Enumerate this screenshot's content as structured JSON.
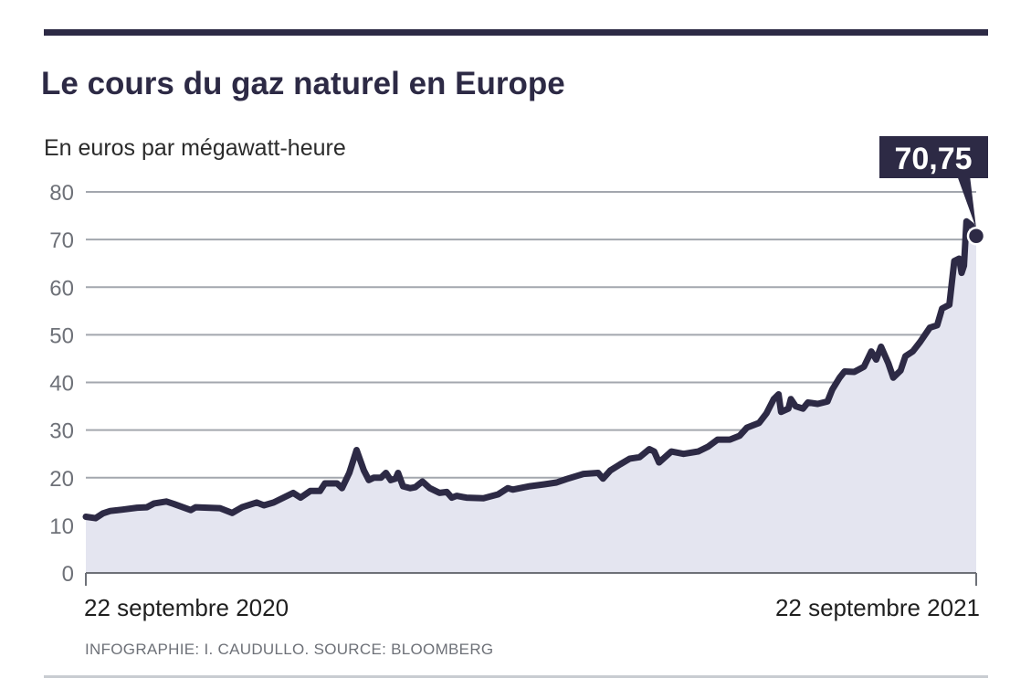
{
  "chart_data": {
    "type": "area",
    "title": "Le cours du gaz naturel en Europe",
    "ylabel": "En euros par mégawatt-heure",
    "xlabel": "",
    "ylim": [
      0,
      80
    ],
    "yticks": [
      "0",
      "10",
      "20",
      "30",
      "40",
      "50",
      "60",
      "70",
      "80"
    ],
    "xlim_days": [
      0,
      365
    ],
    "x_tick_labels": [
      "22 septembre 2020",
      "22 septembre 2021"
    ],
    "grid": true,
    "last_value_label": "70,75",
    "last_value": 70.75,
    "source": "INFOGRAPHIE: I. CAUDULLO. SOURCE: BLOOMBERG",
    "x_unit": "days since 22 septembre 2020",
    "x": [
      0,
      4,
      7,
      10,
      15,
      21,
      25,
      28,
      33,
      36,
      43,
      45,
      55,
      60,
      64,
      70,
      73,
      77,
      85,
      88,
      92,
      96,
      98,
      103,
      105,
      108,
      111,
      114,
      116,
      118,
      121,
      123,
      125,
      127,
      128,
      130,
      133,
      135,
      138,
      141,
      145,
      148,
      150,
      152,
      156,
      163,
      169,
      173,
      175,
      178,
      182,
      188,
      193,
      197,
      204,
      210,
      212,
      215,
      219,
      223,
      227,
      231,
      233,
      235,
      240,
      245,
      251,
      255,
      259,
      264,
      268,
      271,
      276,
      279,
      282,
      284,
      285,
      288,
      289,
      291,
      294,
      296,
      300,
      304,
      306,
      309,
      311,
      315,
      319,
      322,
      324,
      326,
      329,
      331,
      334,
      336,
      339,
      342,
      346,
      349,
      351,
      354,
      356,
      358,
      359,
      360,
      361,
      363,
      365
    ],
    "values": [
      11.8,
      11.5,
      12.5,
      13,
      13.3,
      13.7,
      13.8,
      14.6,
      15,
      14.5,
      13.2,
      13.8,
      13.6,
      12.6,
      13.8,
      14.8,
      14.2,
      14.8,
      16.8,
      15.8,
      17.2,
      17.2,
      18.8,
      18.8,
      17.8,
      21,
      25.8,
      21.5,
      19.5,
      20,
      20,
      21,
      19.5,
      19.8,
      21,
      18.2,
      17.8,
      18,
      19.2,
      17.8,
      16.8,
      17,
      15.8,
      16.2,
      15.8,
      15.7,
      16.5,
      17.8,
      17.5,
      17.8,
      18.2,
      18.6,
      19,
      19.7,
      20.8,
      21,
      19.8,
      21.5,
      22.8,
      24,
      24.3,
      26,
      25.5,
      23.2,
      25.5,
      25,
      25.5,
      26.5,
      28,
      28,
      28.8,
      30.5,
      31.5,
      33.5,
      36.5,
      37.5,
      33.8,
      34.5,
      36.5,
      35,
      34.5,
      35.8,
      35.5,
      36,
      38.5,
      41,
      42.3,
      42.2,
      43.3,
      46.5,
      44.8,
      47.5,
      44,
      41,
      42.5,
      45.5,
      46.5,
      48.5,
      51.5,
      52,
      55.5,
      56.3,
      65.5,
      66,
      63,
      64.5,
      73.8,
      73,
      70.75
    ]
  },
  "colors": {
    "line": "#2d2a45",
    "fill": "#e4e5f0",
    "grid": "#a3a7ae",
    "rule": "#2d2a45",
    "bottom_rule": "#c9cdd2"
  }
}
